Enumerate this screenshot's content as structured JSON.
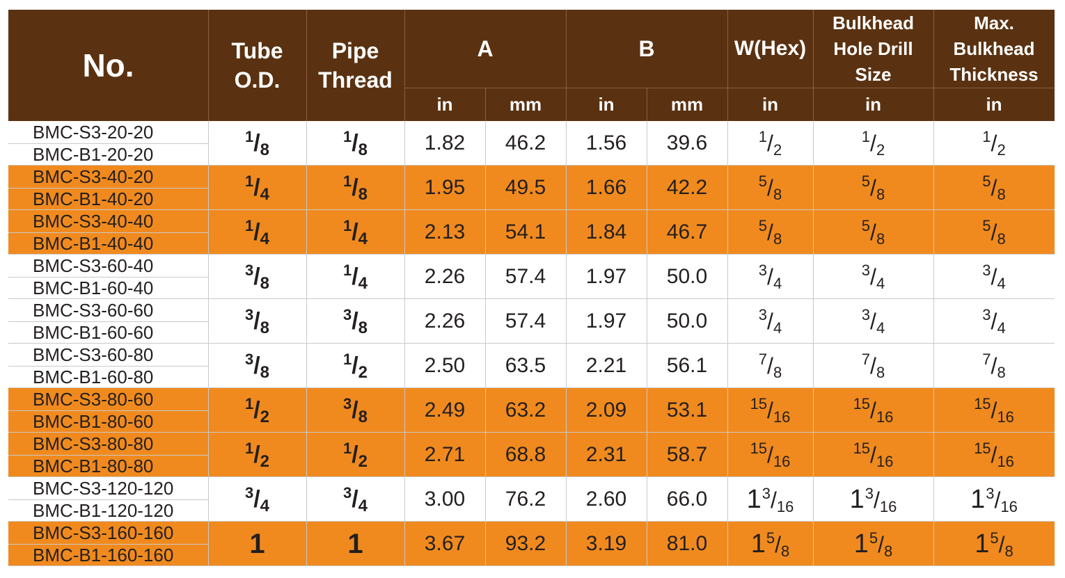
{
  "header": {
    "no": "No.",
    "tube_od": [
      "Tube",
      "O.D."
    ],
    "pipe_thread": [
      "Pipe",
      "Thread"
    ],
    "a": "A",
    "b": "B",
    "w_hex": "W(Hex)",
    "bulkhead_hole": [
      "Bulkhead",
      "Hole Drill",
      "Size"
    ],
    "max_bulkhead": [
      "Max.",
      "Bulkhead",
      "Thickness"
    ],
    "units": [
      "in",
      "mm",
      "in",
      "mm",
      "in",
      "in",
      "in"
    ]
  },
  "colors": {
    "header_bg": "#5a3211",
    "highlight": "#f08a1e",
    "plain": "#ffffff"
  },
  "rows": [
    {
      "parts": [
        "BMC-S3-20-20",
        "BMC-B1-20-20"
      ],
      "tube": "1/8",
      "pipe": "1/8",
      "a_in": "1.82",
      "a_mm": "46.2",
      "b_in": "1.56",
      "b_mm": "39.6",
      "hex": "1/2",
      "drill": "1/2",
      "thick": "1/2",
      "shade": "white"
    },
    {
      "parts": [
        "BMC-S3-40-20",
        "BMC-B1-40-20"
      ],
      "tube": "1/4",
      "pipe": "1/8",
      "a_in": "1.95",
      "a_mm": "49.5",
      "b_in": "1.66",
      "b_mm": "42.2",
      "hex": "5/8",
      "drill": "5/8",
      "thick": "5/8",
      "shade": "orange"
    },
    {
      "parts": [
        "BMC-S3-40-40",
        "BMC-B1-40-40"
      ],
      "tube": "1/4",
      "pipe": "1/4",
      "a_in": "2.13",
      "a_mm": "54.1",
      "b_in": "1.84",
      "b_mm": "46.7",
      "hex": "5/8",
      "drill": "5/8",
      "thick": "5/8",
      "shade": "orange"
    },
    {
      "parts": [
        "BMC-S3-60-40",
        "BMC-B1-60-40"
      ],
      "tube": "3/8",
      "pipe": "1/4",
      "a_in": "2.26",
      "a_mm": "57.4",
      "b_in": "1.97",
      "b_mm": "50.0",
      "hex": "3/4",
      "drill": "3/4",
      "thick": "3/4",
      "shade": "white"
    },
    {
      "parts": [
        "BMC-S3-60-60",
        "BMC-B1-60-60"
      ],
      "tube": "3/8",
      "pipe": "3/8",
      "a_in": "2.26",
      "a_mm": "57.4",
      "b_in": "1.97",
      "b_mm": "50.0",
      "hex": "3/4",
      "drill": "3/4",
      "thick": "3/4",
      "shade": "white"
    },
    {
      "parts": [
        "BMC-S3-60-80",
        "BMC-B1-60-80"
      ],
      "tube": "3/8",
      "pipe": "1/2",
      "a_in": "2.50",
      "a_mm": "63.5",
      "b_in": "2.21",
      "b_mm": "56.1",
      "hex": "7/8",
      "drill": "7/8",
      "thick": "7/8",
      "shade": "white"
    },
    {
      "parts": [
        "BMC-S3-80-60",
        "BMC-B1-80-60"
      ],
      "tube": "1/2",
      "pipe": "3/8",
      "a_in": "2.49",
      "a_mm": "63.2",
      "b_in": "2.09",
      "b_mm": "53.1",
      "hex": "15/16",
      "drill": "15/16",
      "thick": "15/16",
      "shade": "orange"
    },
    {
      "parts": [
        "BMC-S3-80-80",
        "BMC-B1-80-80"
      ],
      "tube": "1/2",
      "pipe": "1/2",
      "a_in": "2.71",
      "a_mm": "68.8",
      "b_in": "2.31",
      "b_mm": "58.7",
      "hex": "15/16",
      "drill": "15/16",
      "thick": "15/16",
      "shade": "orange"
    },
    {
      "parts": [
        "BMC-S3-120-120",
        "BMC-B1-120-120"
      ],
      "tube": "3/4",
      "pipe": "3/4",
      "a_in": "3.00",
      "a_mm": "76.2",
      "b_in": "2.60",
      "b_mm": "66.0",
      "hex": "1 3/16",
      "drill": "1 3/16",
      "thick": "1 3/16",
      "shade": "white"
    },
    {
      "parts": [
        "BMC-S3-160-160",
        "BMC-B1-160-160"
      ],
      "tube": "1",
      "pipe": "1",
      "a_in": "3.67",
      "a_mm": "93.2",
      "b_in": "3.19",
      "b_mm": "81.0",
      "hex": "1 5/8",
      "drill": "1 5/8",
      "thick": "1 5/8",
      "shade": "orange"
    }
  ]
}
